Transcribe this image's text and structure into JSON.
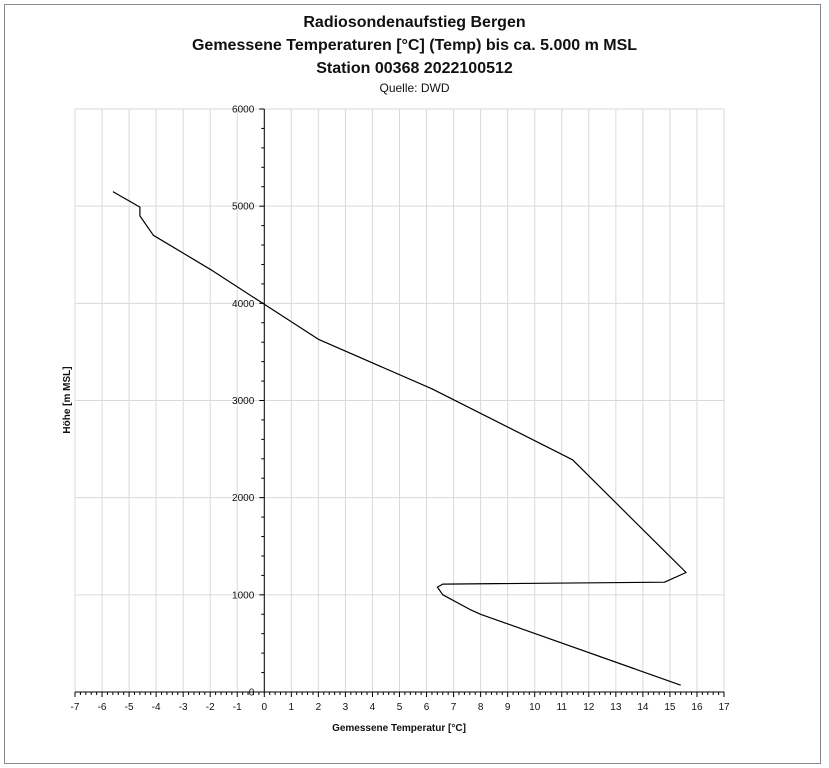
{
  "chart_data": {
    "type": "line",
    "title": "Radiosondenaufstieg Bergen",
    "subtitle": "Gemessene Temperaturen [°C] (Temp) bis ca. 5.000 m MSL",
    "subtitle2": "Station 00368 2022100512",
    "source": "Quelle: DWD",
    "xlabel": "Gemessene Temperatur [°C]",
    "ylabel": "Höhe [m MSL]",
    "xlim": [
      -7,
      17
    ],
    "ylim": [
      0,
      6000
    ],
    "x_ticks": [
      -7,
      -6,
      -5,
      -4,
      -3,
      -2,
      -1,
      0,
      1,
      2,
      3,
      4,
      5,
      6,
      7,
      8,
      9,
      10,
      11,
      12,
      13,
      14,
      15,
      16,
      17
    ],
    "y_ticks": [
      0,
      1000,
      2000,
      3000,
      4000,
      5000,
      6000
    ],
    "grid": true,
    "legend": "none",
    "line_color": "#000000",
    "series": [
      {
        "x": [
          15.4,
          14.8,
          8.0,
          7.6,
          6.6,
          6.4,
          6.6,
          14.8,
          15.6,
          14.8,
          11.4,
          6.2,
          2.0,
          0.0,
          -2.0,
          -4.1,
          -4.6,
          -4.6,
          -5.6
        ],
        "y": [
          70,
          130,
          800,
          850,
          1000,
          1080,
          1110,
          1130,
          1230,
          1450,
          2390,
          3120,
          3630,
          3990,
          4350,
          4700,
          4900,
          4990,
          5150
        ]
      }
    ]
  }
}
